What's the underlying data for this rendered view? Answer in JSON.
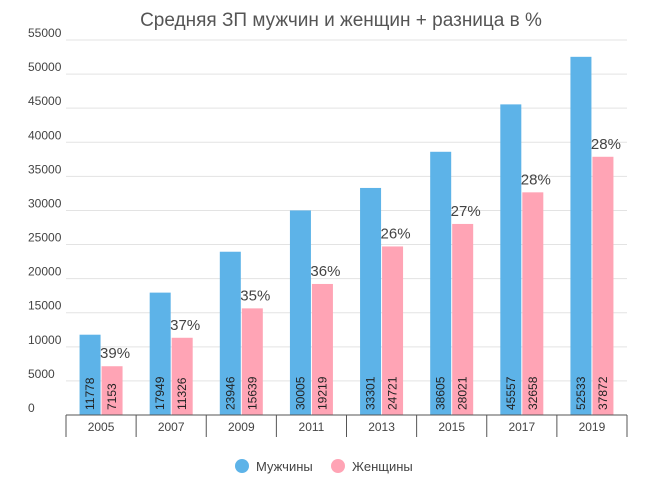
{
  "chart_data": {
    "type": "bar",
    "title": "Средняя ЗП мужчин и женщин + разница в %",
    "categories": [
      "2005",
      "2007",
      "2009",
      "2011",
      "2013",
      "2015",
      "2017",
      "2019"
    ],
    "series": [
      {
        "name": "Мужчины",
        "color": "#5DB3E8",
        "values": [
          11778,
          17949,
          23946,
          30005,
          33301,
          38605,
          45557,
          52533
        ]
      },
      {
        "name": "Женщины",
        "color": "#FFA4B5",
        "values": [
          7153,
          11326,
          15639,
          19219,
          24721,
          28021,
          32658,
          37872
        ]
      }
    ],
    "gap_labels": [
      "39%",
      "37%",
      "35%",
      "36%",
      "26%",
      "27%",
      "28%",
      "28%"
    ],
    "ylim": [
      0,
      55000
    ],
    "yticks": [
      0,
      5000,
      10000,
      15000,
      20000,
      25000,
      30000,
      35000,
      40000,
      45000,
      50000,
      55000
    ],
    "xlabel": "",
    "ylabel": "",
    "grid": true,
    "legend_position": "bottom-center"
  }
}
